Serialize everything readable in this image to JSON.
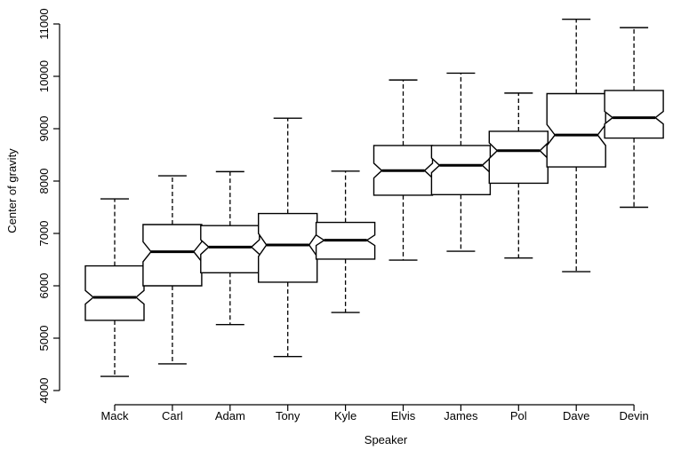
{
  "chart_data": {
    "type": "boxplot",
    "variant": "notched",
    "xlabel": "Speaker",
    "ylabel": "Center of gravity",
    "ylim": [
      4000,
      11300
    ],
    "yticks": [
      4000,
      5000,
      6000,
      7000,
      8000,
      9000,
      10000,
      11000
    ],
    "categories": [
      "Mack",
      "Carl",
      "Adam",
      "Tony",
      "Kyle",
      "Elvis",
      "James",
      "Pol",
      "Dave",
      "Devin"
    ],
    "boxes": [
      {
        "name": "Mack",
        "min": 4270,
        "q1": 5340,
        "median": 5780,
        "q3": 6380,
        "max": 7660,
        "notch_low": 5650,
        "notch_high": 5910
      },
      {
        "name": "Carl",
        "min": 4510,
        "q1": 6000,
        "median": 6650,
        "q3": 7170,
        "max": 8100,
        "notch_low": 6460,
        "notch_high": 6840
      },
      {
        "name": "Adam",
        "min": 5260,
        "q1": 6250,
        "median": 6740,
        "q3": 7150,
        "max": 8180,
        "notch_low": 6600,
        "notch_high": 6880
      },
      {
        "name": "Tony",
        "min": 4650,
        "q1": 6070,
        "median": 6780,
        "q3": 7380,
        "max": 9200,
        "notch_low": 6560,
        "notch_high": 7000
      },
      {
        "name": "Kyle",
        "min": 5490,
        "q1": 6510,
        "median": 6870,
        "q3": 7210,
        "max": 8190,
        "notch_low": 6770,
        "notch_high": 6970
      },
      {
        "name": "Elvis",
        "min": 6490,
        "q1": 7730,
        "median": 8200,
        "q3": 8680,
        "max": 9930,
        "notch_low": 8060,
        "notch_high": 8340
      },
      {
        "name": "James",
        "min": 6660,
        "q1": 7740,
        "median": 8300,
        "q3": 8680,
        "max": 10060,
        "notch_low": 8160,
        "notch_high": 8440
      },
      {
        "name": "Pol",
        "min": 6530,
        "q1": 7960,
        "median": 8580,
        "q3": 8950,
        "max": 9680,
        "notch_low": 8430,
        "notch_high": 8730
      },
      {
        "name": "Dave",
        "min": 6270,
        "q1": 8270,
        "median": 8880,
        "q3": 9670,
        "max": 11090,
        "notch_low": 8680,
        "notch_high": 9080
      },
      {
        "name": "Devin",
        "min": 7500,
        "q1": 8820,
        "median": 9210,
        "q3": 9730,
        "max": 10930,
        "notch_low": 9090,
        "notch_high": 9330
      }
    ],
    "grid": false,
    "legend": "none"
  }
}
